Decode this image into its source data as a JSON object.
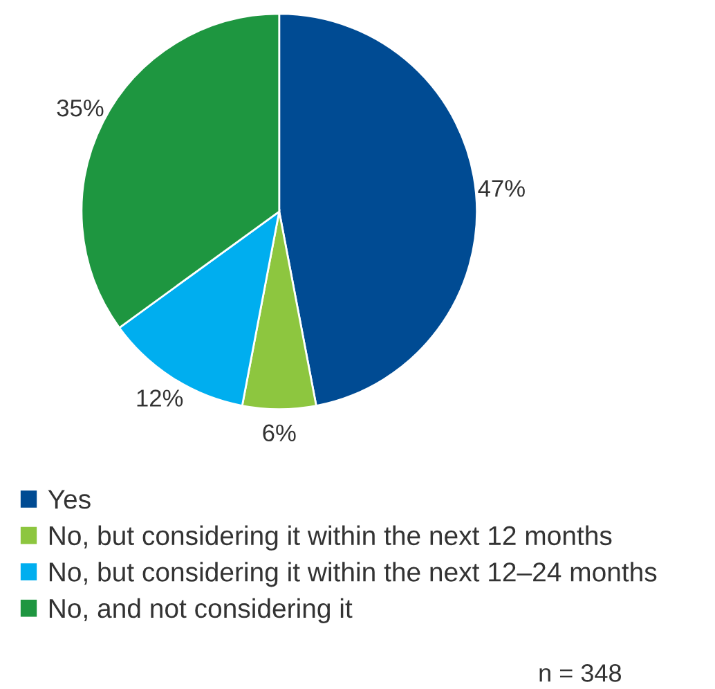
{
  "chart_data": {
    "type": "pie",
    "categories": [
      "Yes",
      "No, but considering it within the next 12 months",
      "No, but considering it within the next 12–24 months",
      "No, and not considering it"
    ],
    "values": [
      47,
      6,
      12,
      35
    ],
    "colors": [
      "#004b93",
      "#8dc63f",
      "#00aeef",
      "#1e9640"
    ],
    "value_labels": [
      "47%",
      "6%",
      "12%",
      "35%"
    ],
    "legend": "bottom",
    "annotations": [
      "n = 348"
    ]
  }
}
